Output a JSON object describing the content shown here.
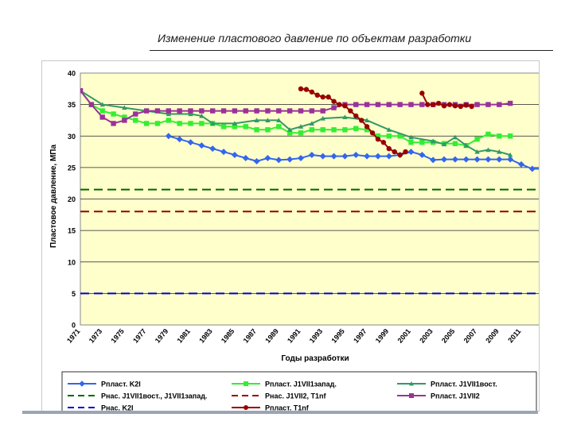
{
  "slide": {
    "title": "Изменение пластового давление по объектам разработки"
  },
  "chart_data": {
    "type": "line",
    "title": "",
    "xlabel": "Годы разработки",
    "ylabel": "Пластовое давление, МПа",
    "ylim": [
      0,
      40
    ],
    "yticks": [
      0,
      5,
      10,
      15,
      20,
      25,
      30,
      35,
      40
    ],
    "xlim": [
      1971,
      2013
    ],
    "xticks": [
      1971,
      1973,
      1975,
      1977,
      1979,
      1981,
      1983,
      1985,
      1987,
      1989,
      1991,
      1993,
      1995,
      1997,
      1999,
      2001,
      2003,
      2005,
      2007,
      2009,
      2011
    ],
    "grid": "horizontal",
    "legend": "bottom",
    "colors": {
      "plot_bg": "#ffffcc"
    },
    "series": [
      {
        "name": "Рпласт. K2I",
        "color": "#3366ee",
        "marker": "diamond",
        "style": "solid",
        "x": [
          1979,
          1980,
          1981,
          1982,
          1983,
          1984,
          1985,
          1986,
          1987,
          1988,
          1989,
          1990,
          1991,
          1992,
          1993,
          1994,
          1995,
          1996,
          1997,
          1998,
          1999,
          2000,
          2001,
          2002,
          2003,
          2004,
          2005,
          2006,
          2007,
          2008,
          2009,
          2010,
          2011,
          2012,
          2013
        ],
        "y": [
          30,
          29.5,
          29,
          28.5,
          28,
          27.5,
          27,
          26.5,
          26,
          26.5,
          26.2,
          26.3,
          26.5,
          27,
          26.8,
          26.8,
          26.8,
          27,
          26.8,
          26.8,
          26.8,
          27,
          27.5,
          27,
          26.2,
          26.3,
          26.3,
          26.3,
          26.3,
          26.3,
          26.3,
          26.3,
          25.5,
          24.8,
          24.8
        ]
      },
      {
        "name": "Рпласт. J1VII1запад.",
        "color": "#33ee33",
        "marker": "square",
        "style": "solid",
        "x": [
          1971,
          1972,
          1973,
          1974,
          1975,
          1976,
          1977,
          1978,
          1979,
          1980,
          1981,
          1982,
          1983,
          1984,
          1985,
          1986,
          1987,
          1988,
          1989,
          1990,
          1991,
          1992,
          1993,
          1994,
          1995,
          1996,
          1997,
          1998,
          1999,
          2000,
          2001,
          2002,
          2003,
          2004,
          2005,
          2006,
          2007,
          2008,
          2009,
          2010
        ],
        "y": [
          37.2,
          35,
          34,
          33.5,
          33,
          32.5,
          32,
          32,
          32.5,
          32,
          32,
          32,
          32,
          31.5,
          31.5,
          31.5,
          31,
          31,
          31.5,
          30.5,
          30.5,
          31,
          31,
          31,
          31,
          31.2,
          31,
          30,
          30,
          30,
          29,
          29,
          29,
          28.8,
          28.8,
          28.5,
          29.5,
          30.3,
          30,
          30
        ]
      },
      {
        "name": "Рпласт. J1VII1вост.",
        "color": "#339966",
        "marker": "triangle",
        "style": "solid",
        "x": [
          1971,
          1973,
          1975,
          1977,
          1979,
          1981,
          1982,
          1983,
          1985,
          1987,
          1988,
          1989,
          1990,
          1991,
          1992,
          1993,
          1995,
          1997,
          1999,
          2001,
          2003,
          2004,
          2005,
          2006,
          2007,
          2008,
          2009,
          2010
        ],
        "y": [
          37.2,
          35,
          34.5,
          34,
          33.5,
          33.5,
          33.2,
          32,
          32,
          32.5,
          32.5,
          32.5,
          31,
          31.5,
          32,
          32.8,
          33,
          32.5,
          31,
          29.8,
          29.2,
          28.7,
          29.8,
          28.5,
          27.5,
          27.8,
          27.5,
          27
        ]
      },
      {
        "name": "Рнас. J1VII1вост., J1VII1запад.",
        "color": "#006600",
        "marker": "none",
        "style": "dashed",
        "x": [
          1971,
          2013
        ],
        "y": [
          21.5,
          21.5
        ]
      },
      {
        "name": "Рнас. J1VII2, T1nf",
        "color": "#990000",
        "marker": "none",
        "style": "dashed",
        "x": [
          1971,
          2013
        ],
        "y": [
          18,
          18
        ]
      },
      {
        "name": "Рпласт. J1VII2",
        "color": "#993399",
        "marker": "square",
        "style": "solid",
        "x": [
          1971,
          1972,
          1973,
          1974,
          1975,
          1976,
          1977,
          1978,
          1979,
          1980,
          1981,
          1982,
          1983,
          1984,
          1985,
          1986,
          1987,
          1988,
          1989,
          1990,
          1991,
          1992,
          1993,
          1994,
          1995,
          1996,
          1997,
          1998,
          1999,
          2000,
          2001,
          2002,
          2003,
          2004,
          2005,
          2006,
          2007,
          2008,
          2009,
          2010
        ],
        "y": [
          37.2,
          35,
          33,
          32,
          32.5,
          33.5,
          34,
          34,
          34,
          34,
          34,
          34,
          34,
          34,
          34,
          34,
          34,
          34,
          34,
          34,
          34,
          34,
          34,
          34.5,
          35,
          35,
          35,
          35,
          35,
          35,
          35,
          35,
          35,
          35,
          35,
          35,
          35,
          35,
          35,
          35.2
        ]
      },
      {
        "name": "Рнас. K2I",
        "color": "#0000cc",
        "marker": "none",
        "style": "dashed",
        "x": [
          1971,
          2013
        ],
        "y": [
          5,
          5
        ]
      },
      {
        "name": "Рпласт. T1nf",
        "color": "#990000",
        "marker": "circle",
        "style": "solid",
        "x": [
          1991,
          1991.5,
          1992,
          1992.5,
          1993,
          1993.5,
          1994,
          1994.5,
          1995,
          1995.5,
          1996,
          1996.5,
          1997,
          1997.5,
          1998,
          1998.5,
          1999,
          1999.5,
          2000,
          2000.5
        ],
        "y": [
          37.5,
          37.4,
          37,
          36.5,
          36.2,
          36.2,
          35.5,
          35,
          34.8,
          34,
          33.2,
          32.5,
          31.5,
          30.5,
          29.5,
          29,
          28,
          27.5,
          27,
          27.5
        ]
      },
      {
        "name": "",
        "color": "#990000",
        "marker": "circle",
        "style": "solid",
        "in_legend": false,
        "x": [
          2002,
          2002.5,
          2003,
          2003.5,
          2004,
          2004.5,
          2005,
          2005.5,
          2006,
          2006.5
        ],
        "y": [
          36.8,
          35,
          35,
          35.2,
          34.8,
          35,
          34.8,
          34.7,
          34.9,
          34.7
        ]
      }
    ]
  }
}
